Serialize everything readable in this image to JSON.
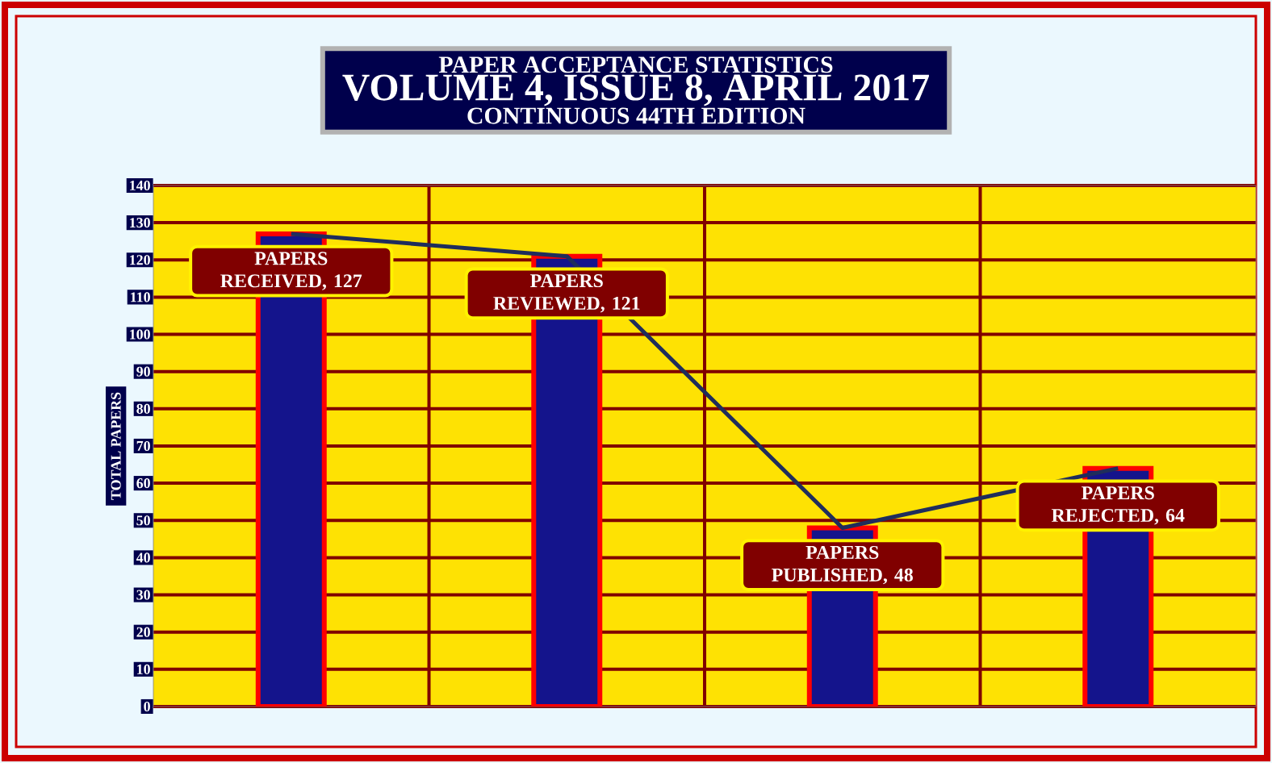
{
  "chart_data": {
    "type": "bar",
    "title": "PAPER ACCEPTANCE STATISTICS",
    "subtitle": "VOLUME 4, ISSUE 8, APRIL 2017",
    "annotations": [
      "CONTINUOUS 44TH EDITION"
    ],
    "ylabel": "TOTAL PAPERS",
    "categories": [
      null,
      null,
      null,
      null
    ],
    "series": [
      {
        "color": "#14148c",
        "values": [
          127,
          121,
          48,
          64
        ],
        "value_labels": [
          "PAPERS RECEIVED, 127",
          "PAPERS REVIEWED, 121",
          "PAPERS PUBLISHED, 48",
          "PAPERS REJECTED, 64"
        ]
      },
      {
        "type": "line",
        "color": "#1f2d5c",
        "values": [
          127,
          121,
          48,
          64
        ]
      }
    ],
    "ylim": [
      0,
      140
    ],
    "yticks": [
      0,
      10,
      20,
      30,
      40,
      50,
      60,
      70,
      80,
      90,
      100,
      110,
      120,
      130,
      140
    ],
    "grid": true
  }
}
